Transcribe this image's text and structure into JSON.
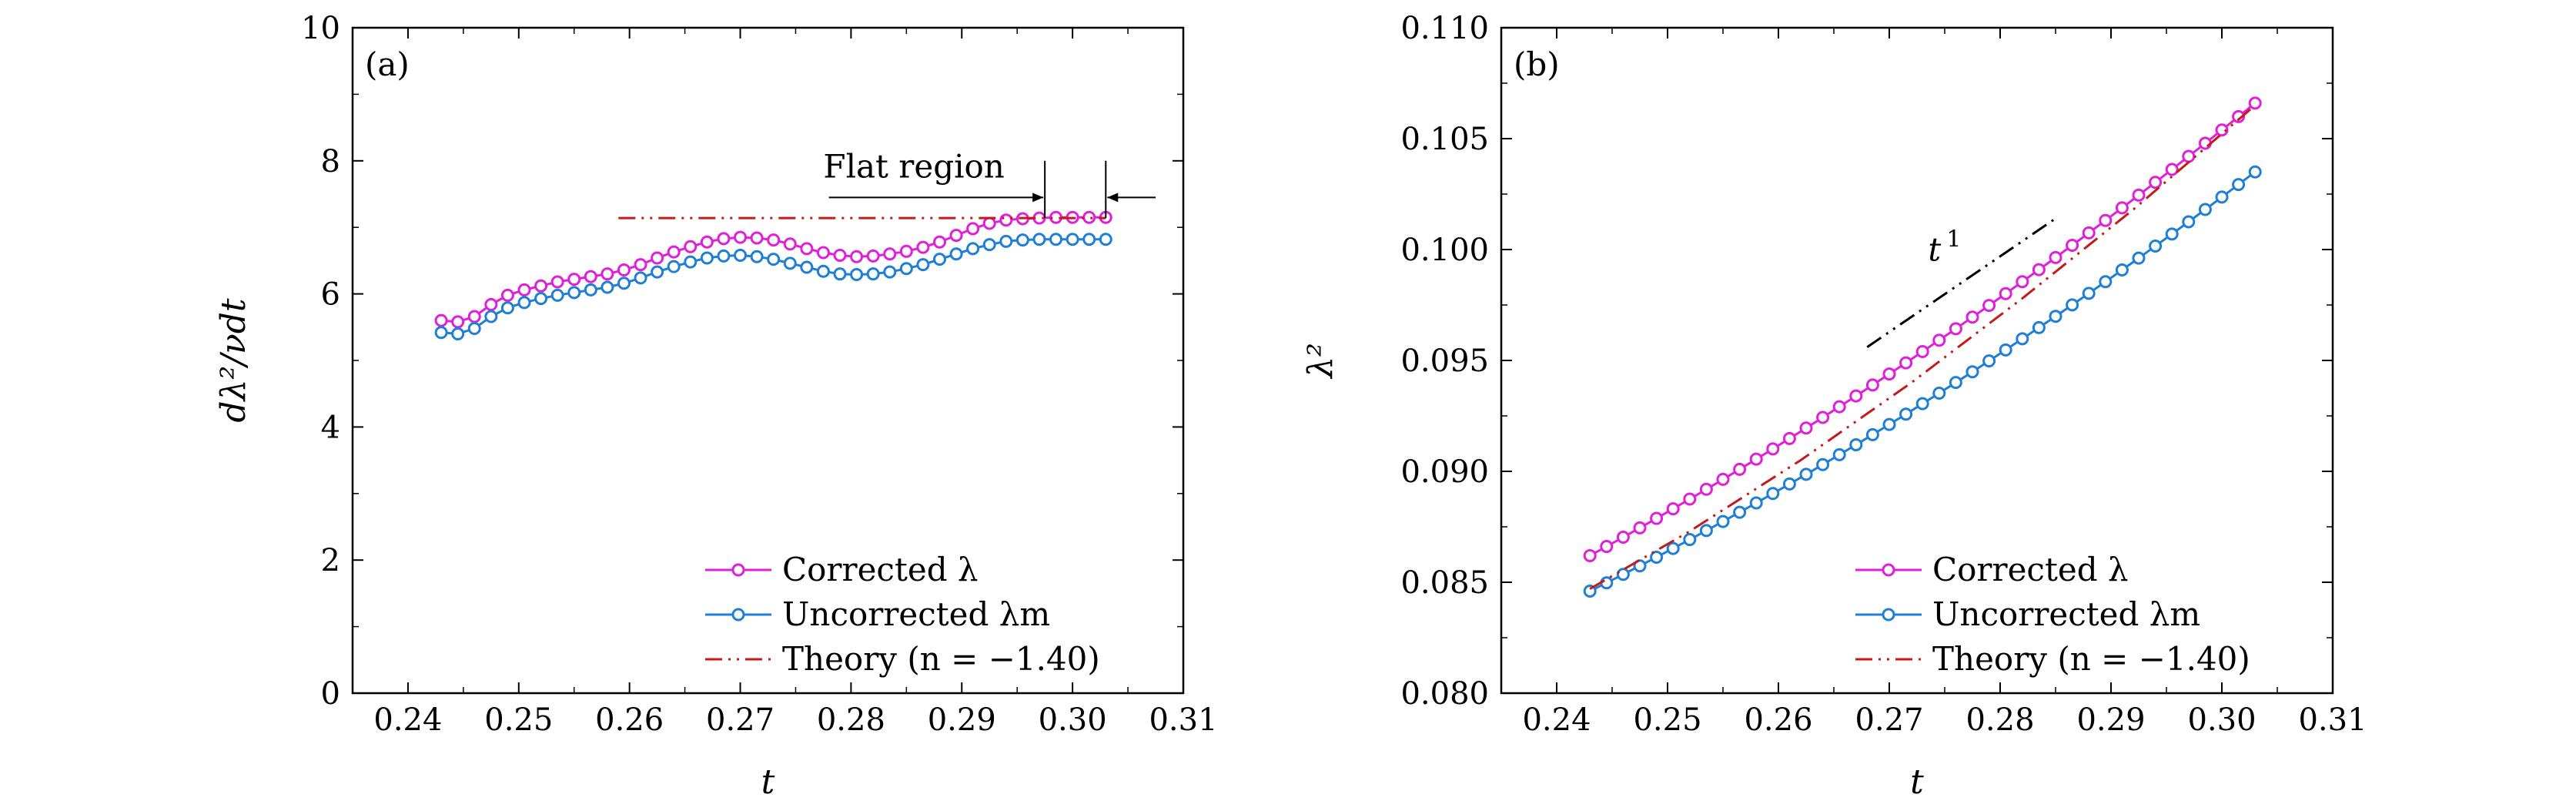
{
  "colors": {
    "corrected": "#e020d8",
    "uncorrected": "#1f7fd6",
    "theory": "#c41a1a",
    "annotation": "#000000"
  },
  "chart_data": [
    {
      "panel": "(a)",
      "type": "line",
      "xlabel": "t",
      "ylabel": "dλ²/νdt",
      "xlim": [
        0.235,
        0.31
      ],
      "ylim": [
        0,
        10
      ],
      "xticks": [
        0.24,
        0.25,
        0.26,
        0.27,
        0.28,
        0.29,
        0.3,
        0.31
      ],
      "xtick_labels": [
        "0.24",
        "0.25",
        "0.26",
        "0.27",
        "0.28",
        "0.29",
        "0.30",
        "0.31"
      ],
      "yticks": [
        0,
        2,
        4,
        6,
        8,
        10
      ],
      "ytick_labels": [
        "0",
        "2",
        "4",
        "6",
        "8",
        "10"
      ],
      "grid": false,
      "legend_position": "bottom-right",
      "series": [
        {
          "name": "Corrected λ",
          "marker": "circle",
          "color_key": "corrected",
          "x": [
            0.243,
            0.2445,
            0.246,
            0.2475,
            0.249,
            0.2505,
            0.252,
            0.2535,
            0.255,
            0.2565,
            0.258,
            0.2595,
            0.261,
            0.2625,
            0.264,
            0.2655,
            0.267,
            0.2685,
            0.27,
            0.2715,
            0.273,
            0.2745,
            0.276,
            0.2775,
            0.279,
            0.2805,
            0.282,
            0.2835,
            0.285,
            0.2865,
            0.288,
            0.2895,
            0.291,
            0.2925,
            0.294,
            0.2955,
            0.297,
            0.2985,
            0.3,
            0.3015,
            0.303
          ],
          "y": [
            5.6,
            5.58,
            5.66,
            5.84,
            5.98,
            6.06,
            6.12,
            6.18,
            6.22,
            6.26,
            6.3,
            6.36,
            6.44,
            6.54,
            6.63,
            6.71,
            6.78,
            6.83,
            6.85,
            6.84,
            6.81,
            6.75,
            6.68,
            6.62,
            6.58,
            6.56,
            6.57,
            6.6,
            6.64,
            6.7,
            6.78,
            6.88,
            6.98,
            7.06,
            7.11,
            7.13,
            7.14,
            7.15,
            7.15,
            7.15,
            7.15
          ]
        },
        {
          "name": "Uncorrected λm",
          "marker": "circle",
          "color_key": "uncorrected",
          "x": [
            0.243,
            0.2445,
            0.246,
            0.2475,
            0.249,
            0.2505,
            0.252,
            0.2535,
            0.255,
            0.2565,
            0.258,
            0.2595,
            0.261,
            0.2625,
            0.264,
            0.2655,
            0.267,
            0.2685,
            0.27,
            0.2715,
            0.273,
            0.2745,
            0.276,
            0.2775,
            0.279,
            0.2805,
            0.282,
            0.2835,
            0.285,
            0.2865,
            0.288,
            0.2895,
            0.291,
            0.2925,
            0.294,
            0.2955,
            0.297,
            0.2985,
            0.3,
            0.3015,
            0.303
          ],
          "y": [
            5.42,
            5.4,
            5.48,
            5.66,
            5.79,
            5.87,
            5.93,
            5.98,
            6.02,
            6.06,
            6.1,
            6.16,
            6.24,
            6.33,
            6.41,
            6.48,
            6.54,
            6.57,
            6.58,
            6.56,
            6.52,
            6.46,
            6.4,
            6.34,
            6.3,
            6.29,
            6.3,
            6.33,
            6.38,
            6.44,
            6.52,
            6.6,
            6.68,
            6.74,
            6.79,
            6.81,
            6.82,
            6.82,
            6.82,
            6.82,
            6.82
          ]
        },
        {
          "name": "Theory (n = −1.40)",
          "style": "dash-dot-dot",
          "color_key": "theory",
          "x": [
            0.259,
            0.303
          ],
          "y": [
            7.14,
            7.14
          ]
        }
      ],
      "annotations": [
        {
          "text": "Flat region"
        }
      ]
    },
    {
      "panel": "(b)",
      "type": "line",
      "xlabel": "t",
      "ylabel": "λ²",
      "xlim": [
        0.235,
        0.31
      ],
      "ylim": [
        0.08,
        0.11
      ],
      "xticks": [
        0.24,
        0.25,
        0.26,
        0.27,
        0.28,
        0.29,
        0.3,
        0.31
      ],
      "xtick_labels": [
        "0.24",
        "0.25",
        "0.26",
        "0.27",
        "0.28",
        "0.29",
        "0.30",
        "0.31"
      ],
      "yticks": [
        0.08,
        0.085,
        0.09,
        0.095,
        0.1,
        0.105,
        0.11
      ],
      "ytick_labels": [
        "0.080",
        "0.085",
        "0.090",
        "0.095",
        "0.100",
        "0.105",
        "0.110"
      ],
      "grid": false,
      "legend_position": "bottom-right",
      "series": [
        {
          "name": "Corrected λ",
          "marker": "circle",
          "color_key": "corrected",
          "x_start": 0.243,
          "x_end": 0.303,
          "points": 41,
          "y_start": 0.0862,
          "y_end": 0.1066,
          "curvature": 0.004
        },
        {
          "name": "Uncorrected λm",
          "marker": "circle",
          "color_key": "uncorrected",
          "x_start": 0.243,
          "x_end": 0.303,
          "points": 41,
          "y_start": 0.0846,
          "y_end": 0.1035,
          "curvature": 0.004
        },
        {
          "name": "Theory (n = −1.40)",
          "style": "dash-dot-dot",
          "color_key": "theory",
          "x": [
            0.243,
            0.252,
            0.262,
            0.272,
            0.282,
            0.292,
            0.303
          ],
          "y": [
            0.0847,
            0.0873,
            0.0905,
            0.094,
            0.0978,
            0.1018,
            0.1065
          ]
        }
      ],
      "annotations": [
        {
          "text": "t",
          "superscript": "1",
          "line_x": [
            0.268,
            0.285
          ],
          "line_y": [
            0.0956,
            0.1014
          ]
        }
      ]
    }
  ]
}
